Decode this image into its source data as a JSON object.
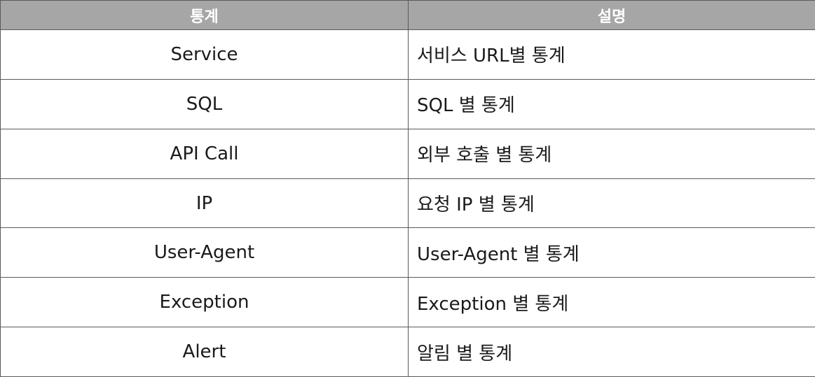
{
  "table": {
    "headers": {
      "stat": "통계",
      "description": "설명"
    },
    "rows": [
      {
        "stat": "Service",
        "description": "서비스 URL별 통계"
      },
      {
        "stat": "SQL",
        "description": "SQL 별 통계"
      },
      {
        "stat": "API Call",
        "description": "외부 호출 별 통계"
      },
      {
        "stat": "IP",
        "description": "요청 IP 별 통계"
      },
      {
        "stat": "User-Agent",
        "description": "User-Agent 별 통계"
      },
      {
        "stat": "Exception",
        "description": "Exception 별 통계"
      },
      {
        "stat": "Alert",
        "description": "알림 별 통계"
      }
    ]
  },
  "colors": {
    "header_background": "#a6a6a6",
    "header_text": "#ffffff",
    "border": "#5a5a5a",
    "cell_text": "#1a1a1a"
  }
}
